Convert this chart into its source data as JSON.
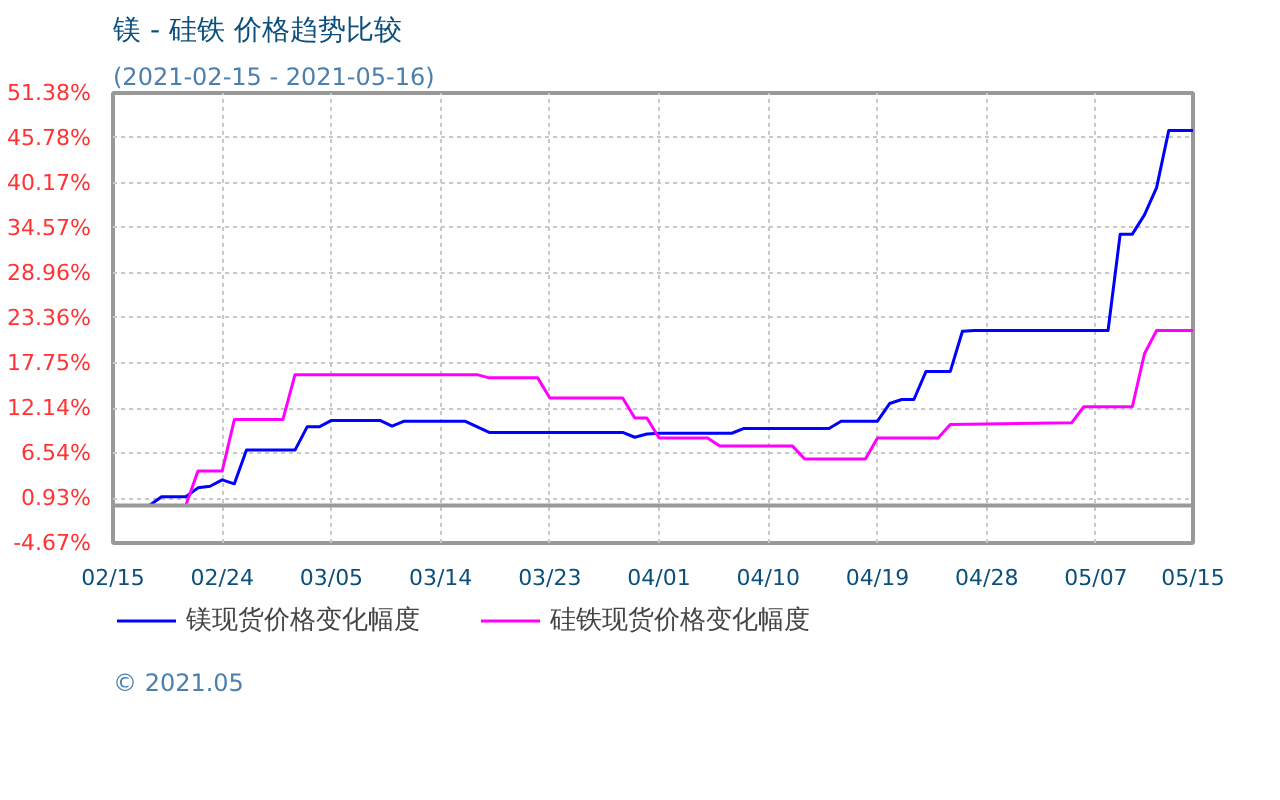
{
  "chart_data": {
    "type": "line",
    "title": "镁 - 硅铁 价格趋势比较",
    "subtitle": "(2021-02-15 - 2021-05-16)",
    "xlim": [
      "2021-02-15",
      "2021-05-15"
    ],
    "xticks": [
      {
        "value": "2021-02-15",
        "label": "02/15"
      },
      {
        "value": "2021-02-24",
        "label": "02/24"
      },
      {
        "value": "2021-03-05",
        "label": "03/05"
      },
      {
        "value": "2021-03-14",
        "label": "03/14"
      },
      {
        "value": "2021-03-23",
        "label": "03/23"
      },
      {
        "value": "2021-04-01",
        "label": "04/01"
      },
      {
        "value": "2021-04-10",
        "label": "04/10"
      },
      {
        "value": "2021-04-19",
        "label": "04/19"
      },
      {
        "value": "2021-04-28",
        "label": "04/28"
      },
      {
        "value": "2021-05-07",
        "label": "05/07"
      },
      {
        "value": "2021-05-15",
        "label": "05/15"
      }
    ],
    "ylim": [
      -4.67,
      51.38
    ],
    "yticks": [
      {
        "value": -4.67,
        "label": "-4.67%"
      },
      {
        "value": 0.93,
        "label": "0.93%"
      },
      {
        "value": 6.54,
        "label": "6.54%"
      },
      {
        "value": 12.14,
        "label": "12.14%"
      },
      {
        "value": 17.75,
        "label": "17.75%"
      },
      {
        "value": 23.36,
        "label": "23.36%"
      },
      {
        "value": 28.96,
        "label": "28.96%"
      },
      {
        "value": 34.57,
        "label": "34.57%"
      },
      {
        "value": 40.17,
        "label": "40.17%"
      },
      {
        "value": 45.78,
        "label": "45.78%"
      },
      {
        "value": 51.38,
        "label": "51.38%"
      }
    ],
    "grid": true,
    "legend": "bottom",
    "marker": "none",
    "line_style": "solid",
    "ref_lines": [
      {
        "axis": "y",
        "value": 0,
        "color": "#999999"
      }
    ],
    "annotations": [
      "© 2021.05"
    ],
    "series": [
      {
        "name": "镁现货价格变化幅度",
        "color": "#0000ff",
        "x": [
          "2021-02-15",
          "2021-02-18",
          "2021-02-19",
          "2021-02-21",
          "2021-02-22",
          "2021-02-23",
          "2021-02-24",
          "2021-02-25",
          "2021-02-26",
          "2021-03-02",
          "2021-03-03",
          "2021-03-04",
          "2021-03-05",
          "2021-03-09",
          "2021-03-10",
          "2021-03-11",
          "2021-03-16",
          "2021-03-18",
          "2021-03-29",
          "2021-03-30",
          "2021-03-31",
          "2021-04-01",
          "2021-04-07",
          "2021-04-08",
          "2021-04-15",
          "2021-04-16",
          "2021-04-19",
          "2021-04-20",
          "2021-04-21",
          "2021-04-22",
          "2021-04-23",
          "2021-04-25",
          "2021-04-26",
          "2021-04-27",
          "2021-05-08",
          "2021-05-09",
          "2021-05-10",
          "2021-05-11",
          "2021-05-12",
          "2021-05-13",
          "2021-05-15"
        ],
        "values": [
          0,
          0,
          1.1,
          1.1,
          2.2,
          2.4,
          3.2,
          2.7,
          6.9,
          6.9,
          9.8,
          9.8,
          10.6,
          10.6,
          9.9,
          10.5,
          10.5,
          9.1,
          9.1,
          8.5,
          8.9,
          9.0,
          9.0,
          9.6,
          9.6,
          10.5,
          10.5,
          12.7,
          13.2,
          13.2,
          16.7,
          16.7,
          21.7,
          21.8,
          21.8,
          33.8,
          33.8,
          36.2,
          39.6,
          46.7,
          46.7
        ]
      },
      {
        "name": "硅铁现货价格变化幅度",
        "color": "#ff00ff",
        "x": [
          "2021-02-15",
          "2021-02-21",
          "2021-02-22",
          "2021-02-24",
          "2021-02-25",
          "2021-03-01",
          "2021-03-02",
          "2021-03-17",
          "2021-03-18",
          "2021-03-22",
          "2021-03-23",
          "2021-03-29",
          "2021-03-30",
          "2021-03-31",
          "2021-04-01",
          "2021-04-05",
          "2021-04-06",
          "2021-04-12",
          "2021-04-13",
          "2021-04-18",
          "2021-04-19",
          "2021-04-24",
          "2021-04-25",
          "2021-05-05",
          "2021-05-06",
          "2021-05-10",
          "2021-05-11",
          "2021-05-12",
          "2021-05-15"
        ],
        "values": [
          0,
          0,
          4.3,
          4.3,
          10.7,
          10.7,
          16.3,
          16.3,
          15.9,
          15.9,
          13.4,
          13.4,
          10.9,
          10.9,
          8.4,
          8.4,
          7.4,
          7.4,
          5.8,
          5.8,
          8.4,
          8.4,
          10.1,
          10.3,
          12.3,
          12.3,
          18.9,
          21.8,
          21.8
        ]
      }
    ]
  }
}
